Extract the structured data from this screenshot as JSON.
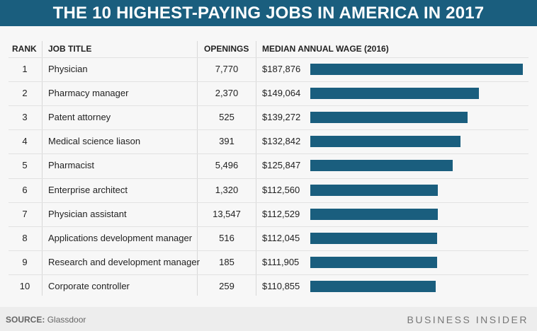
{
  "title": "THE 10 HIGHEST-PAYING JOBS IN AMERICA IN 2017",
  "chart_data": {
    "type": "bar",
    "columns": [
      "RANK",
      "JOB TITLE",
      "OPENINGS",
      "MEDIAN ANNUAL WAGE (2016)"
    ],
    "rows": [
      {
        "rank": "1",
        "title": "Physician",
        "openings": "7,770",
        "wage_label": "$187,876",
        "wage": 187876
      },
      {
        "rank": "2",
        "title": "Pharmacy manager",
        "openings": "2,370",
        "wage_label": "$149,064",
        "wage": 149064
      },
      {
        "rank": "3",
        "title": "Patent attorney",
        "openings": "525",
        "wage_label": "$139,272",
        "wage": 139272
      },
      {
        "rank": "4",
        "title": "Medical science liason",
        "openings": "391",
        "wage_label": "$132,842",
        "wage": 132842
      },
      {
        "rank": "5",
        "title": "Pharmacist",
        "openings": "5,496",
        "wage_label": "$125,847",
        "wage": 125847
      },
      {
        "rank": "6",
        "title": "Enterprise architect",
        "openings": "1,320",
        "wage_label": "$112,560",
        "wage": 112560
      },
      {
        "rank": "7",
        "title": "Physician assistant",
        "openings": "13,547",
        "wage_label": "$112,529",
        "wage": 112529
      },
      {
        "rank": "8",
        "title": "Applications development manager",
        "openings": "516",
        "wage_label": "$112,045",
        "wage": 112045
      },
      {
        "rank": "9",
        "title": "Research and development manager",
        "openings": "185",
        "wage_label": "$111,905",
        "wage": 111905
      },
      {
        "rank": "10",
        "title": "Corporate controller",
        "openings": "259",
        "wage_label": "$110,855",
        "wage": 110855
      }
    ],
    "bar_color": "#1a5e7e",
    "xlim": [
      0,
      187876
    ]
  },
  "footer": {
    "source_label": "SOURCE:",
    "source": "Glassdoor",
    "brand": "BUSINESS INSIDER"
  }
}
